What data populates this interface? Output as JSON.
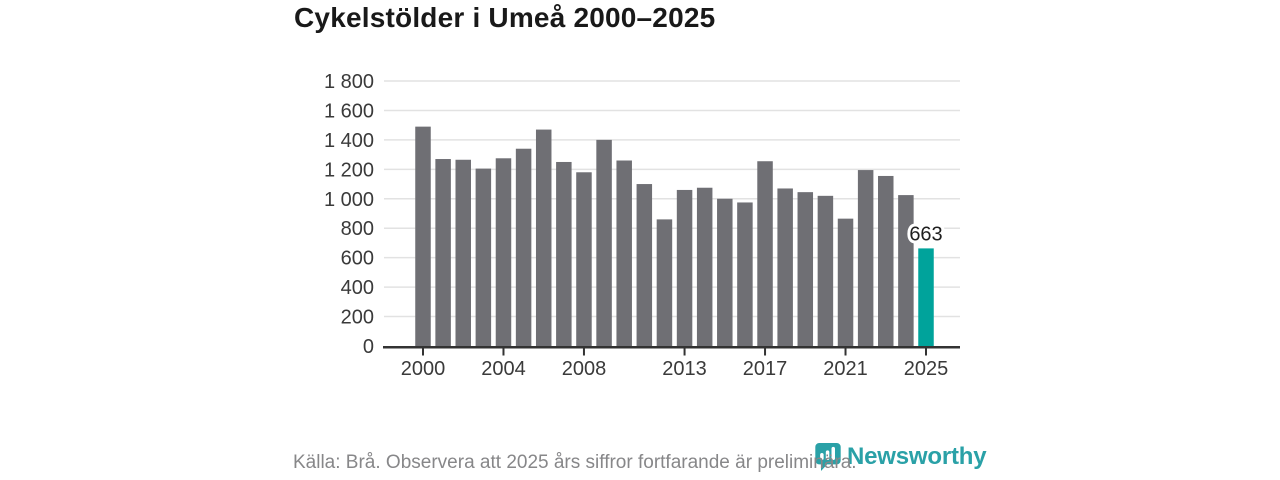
{
  "header": {
    "title": "Cykelstölder i Umeå 2000–2025"
  },
  "footer": {
    "source_note": "Källa: Brå. Observera att 2025 års siffror fortfarande är preliminära.",
    "brand": "Newsworthy"
  },
  "colors": {
    "bar": "#6f6f74",
    "highlight": "#00a39b",
    "grid": "#e2e2e2",
    "axis": "#333333",
    "tick_label": "#3a3a3a",
    "title": "#191919",
    "footer_text": "#878789",
    "brand": "#2aa1a7",
    "bar_label": "#1f1f1f"
  },
  "chart_data": {
    "type": "bar",
    "title": "Cykelstölder i Umeå 2000–2025",
    "categories": [
      2000,
      2001,
      2002,
      2003,
      2004,
      2005,
      2006,
      2007,
      2008,
      2009,
      2010,
      2011,
      2012,
      2013,
      2014,
      2015,
      2016,
      2017,
      2018,
      2019,
      2020,
      2021,
      2022,
      2023,
      2024,
      2025
    ],
    "values": [
      1490,
      1270,
      1265,
      1205,
      1275,
      1340,
      1470,
      1250,
      1180,
      1400,
      1260,
      1100,
      860,
      1060,
      1075,
      1000,
      975,
      1255,
      1070,
      1045,
      1020,
      865,
      1195,
      1155,
      1025,
      663
    ],
    "highlight_index": 25,
    "bar_label": {
      "index": 25,
      "text": "663"
    },
    "xlabel": "",
    "ylabel": "",
    "ylim": [
      0,
      1800
    ],
    "yticks": [
      0,
      200,
      400,
      600,
      800,
      1000,
      1200,
      1400,
      1600,
      1800
    ],
    "ytick_labels": [
      "0",
      "200",
      "400",
      "600",
      "800",
      "1 000",
      "1 200",
      "1 400",
      "1 600",
      "1 800"
    ],
    "xtick_years": [
      2000,
      2004,
      2008,
      2013,
      2017,
      2021,
      2025
    ],
    "xtick_labels": [
      "2000",
      "2004",
      "2008",
      "2013",
      "2017",
      "2021",
      "2025"
    ],
    "grid": true,
    "legend": "none"
  }
}
